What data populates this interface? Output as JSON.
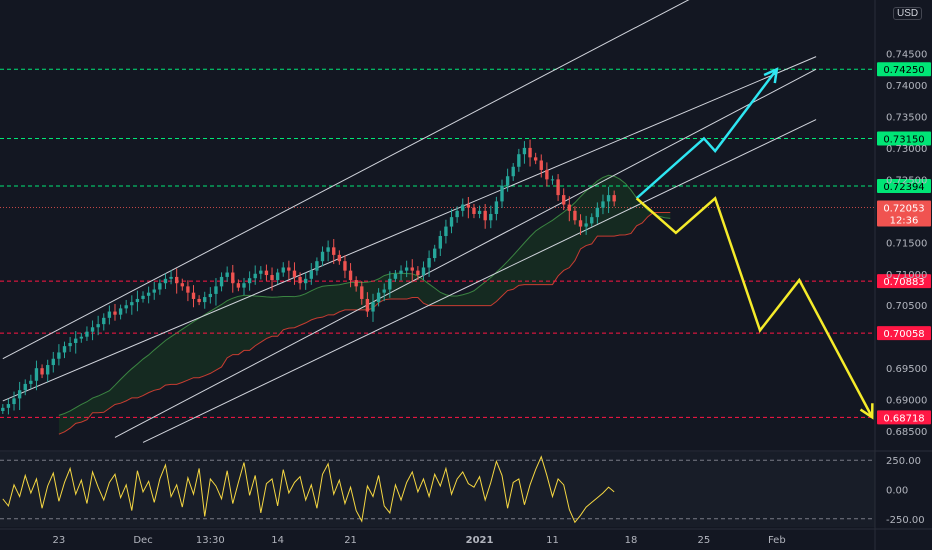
{
  "currency": "USD",
  "chart_data": {
    "type": "candlestick",
    "instrument_quote_currency": "USD",
    "price_axis": {
      "ticks": [
        "0.74500",
        "0.74000",
        "0.73500",
        "0.73000",
        "0.72500",
        "0.71500",
        "0.71000",
        "0.70500",
        "0.69500",
        "0.69000",
        "0.68500"
      ],
      "tick_values": [
        0.745,
        0.74,
        0.735,
        0.73,
        0.725,
        0.715,
        0.71,
        0.705,
        0.695,
        0.69,
        0.685
      ],
      "range": [
        0.682,
        0.7535
      ]
    },
    "time_axis": {
      "labels": [
        "23",
        "Dec",
        "13:30",
        "14",
        "21",
        "2021",
        "11",
        "18",
        "25",
        "Feb"
      ],
      "label_index": [
        10,
        25,
        37,
        49,
        62,
        85,
        98,
        112,
        125,
        138
      ]
    },
    "current_price": {
      "value": "0.72053",
      "countdown": "12:36",
      "color": "#f05350"
    },
    "horizontal_levels": [
      {
        "label": "0.74250",
        "value": 0.7425,
        "color": "#00e676",
        "text_color": "#000000",
        "style": "dashed"
      },
      {
        "label": "0.73150",
        "value": 0.7315,
        "color": "#00e676",
        "text_color": "#000000",
        "style": "dashed"
      },
      {
        "label": "0.72394",
        "value": 0.72394,
        "color": "#00e676",
        "text_color": "#000000",
        "style": "dashed"
      },
      {
        "label": "0.70883",
        "value": 0.70883,
        "color": "#ff1744",
        "text_color": "#ffffff",
        "style": "dashed"
      },
      {
        "label": "0.70058",
        "value": 0.70058,
        "color": "#ff1744",
        "text_color": "#ffffff",
        "style": "dashed"
      },
      {
        "label": "0.68718",
        "value": 0.68718,
        "color": "#ff1744",
        "text_color": "#ffffff",
        "style": "dashed"
      }
    ],
    "channel_lines": [
      {
        "from": [
          0,
          0.6965
        ],
        "to": [
          128,
          0.7562
        ]
      },
      {
        "from": [
          0,
          0.6898
        ],
        "to": [
          145,
          0.7445
        ]
      },
      {
        "from": [
          20,
          0.684
        ],
        "to": [
          145,
          0.7425
        ]
      },
      {
        "from": [
          25,
          0.6832
        ],
        "to": [
          145,
          0.7345
        ]
      }
    ],
    "close_series": [
      0.6887,
      0.6893,
      0.6902,
      0.6915,
      0.6925,
      0.693,
      0.695,
      0.694,
      0.6955,
      0.6965,
      0.6975,
      0.6985,
      0.699,
      0.6997,
      0.7,
      0.7008,
      0.7015,
      0.702,
      0.703,
      0.704,
      0.7035,
      0.7045,
      0.705,
      0.7055,
      0.706,
      0.7065,
      0.707,
      0.7075,
      0.7085,
      0.7092,
      0.7095,
      0.7085,
      0.708,
      0.707,
      0.706,
      0.7055,
      0.7063,
      0.7068,
      0.708,
      0.7095,
      0.7102,
      0.7085,
      0.7078,
      0.7085,
      0.7093,
      0.71,
      0.7105,
      0.7098,
      0.709,
      0.7102,
      0.711,
      0.7105,
      0.7095,
      0.7085,
      0.7092,
      0.7105,
      0.712,
      0.7135,
      0.7142,
      0.713,
      0.712,
      0.7105,
      0.709,
      0.708,
      0.706,
      0.704,
      0.7055,
      0.707,
      0.7075,
      0.7092,
      0.71,
      0.7105,
      0.711,
      0.7105,
      0.7098,
      0.711,
      0.7125,
      0.714,
      0.716,
      0.7175,
      0.719,
      0.72,
      0.721,
      0.7205,
      0.7195,
      0.72,
      0.7185,
      0.7195,
      0.7215,
      0.724,
      0.7255,
      0.727,
      0.729,
      0.73,
      0.7285,
      0.728,
      0.7265,
      0.725,
      0.725,
      0.7225,
      0.721,
      0.72,
      0.7185,
      0.7175,
      0.718,
      0.719,
      0.7205,
      0.7215,
      0.7225,
      0.7215
    ],
    "rsi_cci_panel": {
      "ticks": [
        "250.00",
        "0.00",
        "-250.00"
      ],
      "tick_values": [
        250,
        0,
        -250
      ],
      "range": [
        -320,
        320
      ],
      "values": [
        -80,
        -140,
        40,
        -60,
        120,
        -30,
        90,
        -160,
        30,
        140,
        -100,
        60,
        180,
        -40,
        80,
        -120,
        150,
        20,
        -90,
        60,
        130,
        -70,
        40,
        -180,
        160,
        -20,
        70,
        -110,
        90,
        210,
        -60,
        40,
        -150,
        100,
        -40,
        180,
        -230,
        90,
        30,
        -80,
        160,
        -120,
        60,
        230,
        -50,
        120,
        -200,
        50,
        90,
        -140,
        170,
        -30,
        60,
        110,
        -90,
        40,
        -160,
        130,
        220,
        -40,
        80,
        -120,
        20,
        -180,
        -270,
        30,
        -60,
        120,
        -140,
        -200,
        40,
        -90,
        60,
        150,
        -20,
        90,
        -60,
        130,
        30,
        180,
        -40,
        90,
        150,
        50,
        20,
        110,
        -90,
        60,
        240,
        120,
        -160,
        60,
        90,
        -130,
        40,
        170,
        280,
        120,
        -60,
        90,
        40,
        -170,
        -280,
        -220,
        -150,
        -110,
        -70,
        -30,
        20,
        -20
      ]
    },
    "arrows": [
      {
        "name": "bullish-projection",
        "color": "#2ee6f2",
        "points": [
          [
            113,
            0.722
          ],
          [
            125,
            0.7315
          ],
          [
            127,
            0.7295
          ],
          [
            138,
            0.7425
          ]
        ],
        "arrowhead": true
      },
      {
        "name": "bearish-projection",
        "color": "#f5eb2a",
        "points": [
          [
            113,
            0.722
          ],
          [
            120,
            0.7165
          ],
          [
            127,
            0.722
          ],
          [
            135,
            0.701
          ],
          [
            142,
            0.709
          ],
          [
            155,
            0.6872
          ]
        ],
        "arrowhead": true
      }
    ]
  }
}
